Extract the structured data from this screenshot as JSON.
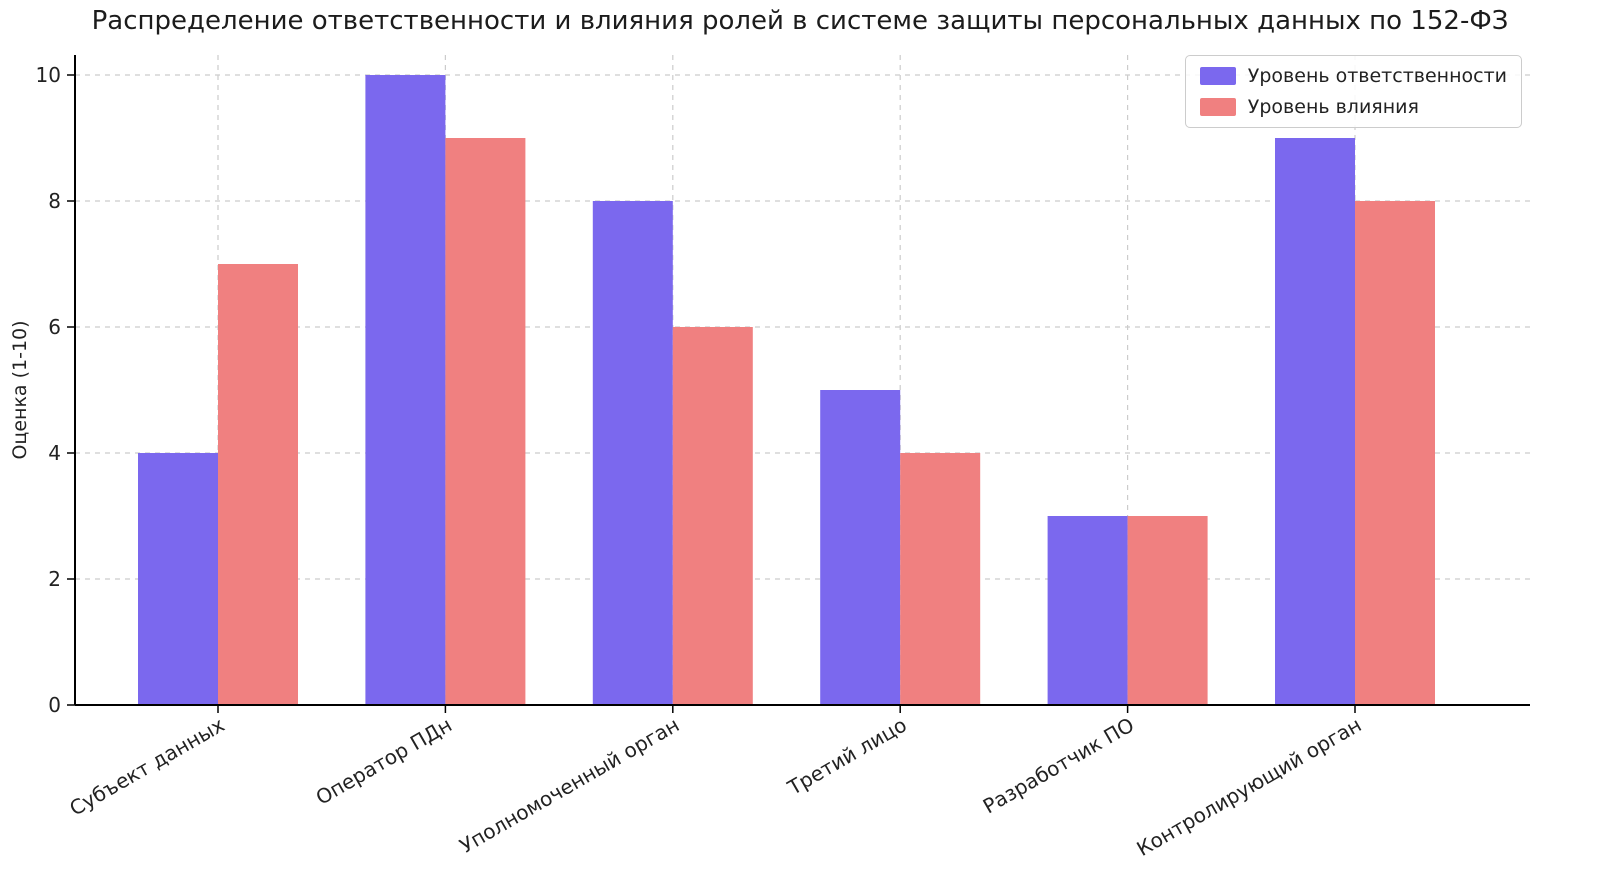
{
  "chart_data": {
    "type": "bar",
    "title": "Распределение ответственности и влияния ролей в системе защиты персональных данных по 152-ФЗ",
    "ylabel": "Оценка (1-10)",
    "xlabel": "",
    "categories": [
      "Субъект данных",
      "Оператор ПДн",
      "Уполномоченный орган",
      "Третий лицо",
      "Разработчик ПО",
      "Контролирующий орган"
    ],
    "series": [
      {
        "name": "Уровень ответственности",
        "color": "#7B68EE",
        "values": [
          4,
          10,
          8,
          5,
          3,
          9
        ]
      },
      {
        "name": "Уровень влияния",
        "color": "#F08080",
        "values": [
          7,
          9,
          6,
          4,
          3,
          8
        ]
      }
    ],
    "yticks": [
      0,
      2,
      4,
      6,
      8,
      10
    ],
    "ylim": [
      0,
      10.3
    ],
    "grid": "both-dashed",
    "grid_color": "#cccccc",
    "legend_position": "upper right",
    "xtick_rotation_deg": 30
  }
}
